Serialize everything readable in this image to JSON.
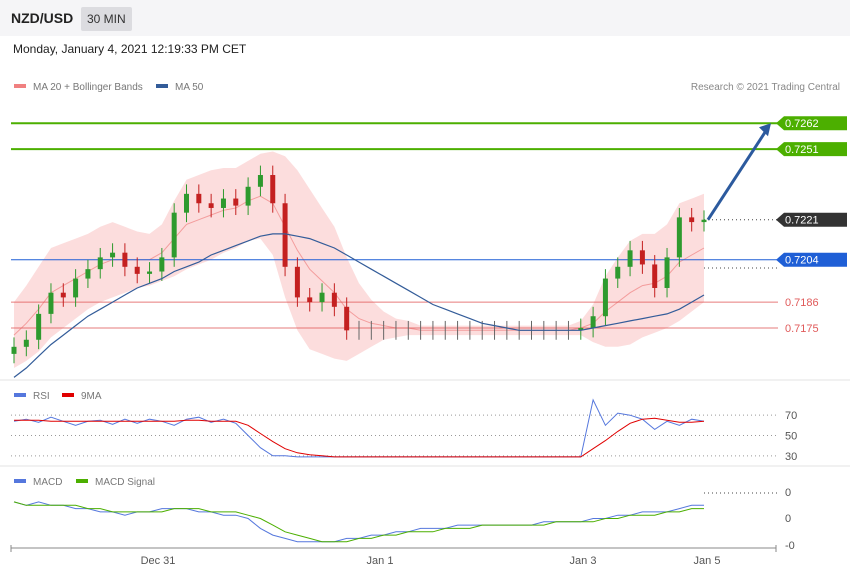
{
  "header": {
    "pair": "NZD/USD",
    "timeframe": "30 MIN"
  },
  "datetime": "Monday, January 4, 2021 12:19:33 PM CET",
  "credit": "Research © 2021 Trading Central",
  "colors": {
    "bollinger": "#f08080",
    "ma50": "#335c99",
    "resistance": "#4caf00",
    "support_blue": "#1f5fd6",
    "support_red": "#e05a5a",
    "current": "#333333",
    "arrow": "#2c5a9e",
    "rsi": "#5577dd",
    "rsi_ma": "#e00000",
    "macd": "#5577dd",
    "macd_signal": "#4caf00",
    "bull": "#2e9a2e",
    "bear": "#c42020"
  },
  "chart_data": [
    {
      "type": "candlestick",
      "title": "",
      "legend": [
        {
          "name": "MA 20 + Bollinger Bands",
          "color": "#f08080"
        },
        {
          "name": "MA 50",
          "color": "#335c99"
        }
      ],
      "x_ticks": [
        "Dec 31",
        "Jan 1",
        "Jan 3",
        "Jan 5"
      ],
      "ylim": [
        0.7158,
        0.7274
      ],
      "levels": [
        {
          "label": "0.7262",
          "value": 0.7262,
          "kind": "resistance"
        },
        {
          "label": "0.7251",
          "value": 0.7251,
          "kind": "resistance"
        },
        {
          "label": "0.7221",
          "value": 0.7221,
          "kind": "current"
        },
        {
          "label": "0.7204",
          "value": 0.7204,
          "kind": "support-blue"
        },
        {
          "label": "0.7186",
          "value": 0.7186,
          "kind": "support-red"
        },
        {
          "label": "0.7175",
          "value": 0.7175,
          "kind": "support-red"
        }
      ],
      "forecast_arrow": {
        "from": 0.7221,
        "to": 0.7262
      },
      "close_path": [
        0.7167,
        0.717,
        0.7181,
        0.719,
        0.7188,
        0.7196,
        0.72,
        0.7205,
        0.7207,
        0.7201,
        0.7198,
        0.7199,
        0.7205,
        0.7224,
        0.7232,
        0.7228,
        0.7226,
        0.723,
        0.7227,
        0.7235,
        0.724,
        0.7228,
        0.7201,
        0.7188,
        0.7186,
        0.719,
        0.7184,
        0.7174,
        0.7174,
        0.7174,
        0.7174,
        0.7174,
        0.7174,
        0.7174,
        0.7174,
        0.7174,
        0.7174,
        0.7174,
        0.7174,
        0.7174,
        0.7174,
        0.7174,
        0.7174,
        0.7174,
        0.7174,
        0.7174,
        0.7175,
        0.718,
        0.7196,
        0.7201,
        0.7208,
        0.7202,
        0.7192,
        0.7205,
        0.7222,
        0.722,
        0.7221
      ],
      "bb_mid": [
        0.7172,
        0.7177,
        0.7183,
        0.719,
        0.7193,
        0.7196,
        0.7199,
        0.7202,
        0.7204,
        0.7204,
        0.7204,
        0.7204,
        0.7207,
        0.7213,
        0.7219,
        0.7221,
        0.7223,
        0.7225,
        0.7226,
        0.7229,
        0.7231,
        0.7228,
        0.7218,
        0.7208,
        0.72,
        0.7195,
        0.719,
        0.7183,
        0.7179,
        0.7177,
        0.7176,
        0.7175,
        0.7175,
        0.7174,
        0.7174,
        0.7174,
        0.7174,
        0.7174,
        0.7174,
        0.7174,
        0.7174,
        0.7174,
        0.7174,
        0.7174,
        0.7174,
        0.7174,
        0.7175,
        0.7177,
        0.7182,
        0.7186,
        0.719,
        0.7193,
        0.7194,
        0.7197,
        0.7203,
        0.7206,
        0.7209
      ],
      "bb_width": [
        0.0014,
        0.0016,
        0.0018,
        0.0019,
        0.0018,
        0.0017,
        0.0016,
        0.0016,
        0.0016,
        0.0014,
        0.0012,
        0.0011,
        0.0012,
        0.0016,
        0.0019,
        0.0019,
        0.0019,
        0.0018,
        0.0017,
        0.0017,
        0.0018,
        0.0022,
        0.003,
        0.0034,
        0.0034,
        0.0031,
        0.0028,
        0.0022,
        0.0015,
        0.001,
        0.0006,
        0.0004,
        0.0003,
        0.0002,
        0.0002,
        0.0002,
        0.0002,
        0.0002,
        0.0002,
        0.0002,
        0.0002,
        0.0002,
        0.0002,
        0.0002,
        0.0002,
        0.0002,
        0.0003,
        0.0008,
        0.0015,
        0.0019,
        0.0022,
        0.0022,
        0.0021,
        0.0022,
        0.0025,
        0.0024,
        0.0023
      ],
      "ma50": [
        0.7154,
        0.7158,
        0.7163,
        0.7168,
        0.7172,
        0.7176,
        0.718,
        0.7183,
        0.7186,
        0.7189,
        0.7192,
        0.7194,
        0.7196,
        0.7199,
        0.7201,
        0.7203,
        0.7206,
        0.7208,
        0.721,
        0.7212,
        0.7214,
        0.7215,
        0.7215,
        0.7214,
        0.7213,
        0.7211,
        0.7209,
        0.7206,
        0.7203,
        0.72,
        0.7197,
        0.7194,
        0.7191,
        0.7188,
        0.7185,
        0.7183,
        0.7181,
        0.7179,
        0.7177,
        0.7176,
        0.7175,
        0.7174,
        0.7174,
        0.7174,
        0.7174,
        0.7174,
        0.7174,
        0.7175,
        0.7176,
        0.7177,
        0.7178,
        0.7179,
        0.718,
        0.7181,
        0.7183,
        0.7186,
        0.7189
      ]
    },
    {
      "type": "line",
      "title": "",
      "legend": [
        {
          "name": "RSI",
          "color": "#5577dd"
        },
        {
          "name": "9MA",
          "color": "#e00000"
        }
      ],
      "ylim": [
        20,
        80
      ],
      "y_ticks": [
        "70",
        "50",
        "30"
      ],
      "series": [
        {
          "name": "RSI",
          "values": [
            64,
            66,
            63,
            68,
            64,
            60,
            64,
            65,
            61,
            66,
            62,
            66,
            64,
            60,
            66,
            68,
            63,
            66,
            62,
            50,
            38,
            30,
            30,
            29,
            29,
            29,
            29,
            29,
            29,
            29,
            29,
            29,
            29,
            29,
            29,
            29,
            29,
            29,
            29,
            29,
            29,
            29,
            29,
            29,
            29,
            29,
            29,
            85,
            60,
            72,
            70,
            66,
            56,
            64,
            60,
            66,
            64
          ]
        },
        {
          "name": "9MA",
          "values": [
            65,
            65,
            65,
            64,
            64,
            64,
            64,
            64,
            64,
            64,
            64,
            64,
            64,
            64,
            65,
            65,
            64,
            64,
            64,
            60,
            52,
            44,
            37,
            33,
            31,
            30,
            29,
            29,
            29,
            29,
            29,
            29,
            29,
            29,
            29,
            29,
            29,
            29,
            29,
            29,
            29,
            29,
            29,
            29,
            29,
            29,
            29,
            37,
            45,
            54,
            62,
            66,
            67,
            65,
            63,
            63,
            64
          ]
        }
      ]
    },
    {
      "type": "line",
      "title": "",
      "legend": [
        {
          "name": "MACD",
          "color": "#5577dd"
        },
        {
          "name": "MACD Signal",
          "color": "#4caf00"
        }
      ],
      "ylim": [
        -0.0012,
        0.0004
      ],
      "y_ticks": [
        "0",
        "0",
        "-0"
      ],
      "series": [
        {
          "name": "MACD",
          "values": [
            0.0001,
            0.0,
            0.0001,
            0.0,
            0.0,
            -0.0001,
            -0.0001,
            -0.0002,
            -0.0002,
            -0.0003,
            -0.0002,
            -0.0002,
            -0.0001,
            -0.0001,
            -0.0001,
            -0.0002,
            -0.0002,
            -0.0003,
            -0.0003,
            -0.0004,
            -0.0007,
            -0.0009,
            -0.001,
            -0.0011,
            -0.0011,
            -0.0011,
            -0.0011,
            -0.001,
            -0.001,
            -0.0009,
            -0.0009,
            -0.0008,
            -0.0008,
            -0.0007,
            -0.0007,
            -0.0007,
            -0.0006,
            -0.0006,
            -0.0006,
            -0.0006,
            -0.0006,
            -0.0006,
            -0.0006,
            -0.0005,
            -0.0005,
            -0.0005,
            -0.0005,
            -0.0004,
            -0.0004,
            -0.0003,
            -0.0003,
            -0.0002,
            -0.0002,
            -0.0002,
            -0.0001,
            0.0,
            0.0
          ]
        },
        {
          "name": "MACD Signal",
          "values": [
            0.0001,
            0.0,
            0.0,
            0.0,
            0.0,
            0.0,
            -0.0001,
            -0.0001,
            -0.0002,
            -0.0002,
            -0.0002,
            -0.0002,
            -0.0002,
            -0.0001,
            -0.0001,
            -0.0001,
            -0.0002,
            -0.0002,
            -0.0002,
            -0.0003,
            -0.0004,
            -0.0006,
            -0.0008,
            -0.0009,
            -0.001,
            -0.0011,
            -0.0011,
            -0.0011,
            -0.001,
            -0.001,
            -0.0009,
            -0.0009,
            -0.0008,
            -0.0008,
            -0.0008,
            -0.0007,
            -0.0007,
            -0.0007,
            -0.0006,
            -0.0006,
            -0.0006,
            -0.0006,
            -0.0006,
            -0.0006,
            -0.0005,
            -0.0005,
            -0.0005,
            -0.0005,
            -0.0004,
            -0.0004,
            -0.0003,
            -0.0003,
            -0.0003,
            -0.0002,
            -0.0002,
            -0.0001,
            -0.0001
          ]
        }
      ]
    }
  ]
}
